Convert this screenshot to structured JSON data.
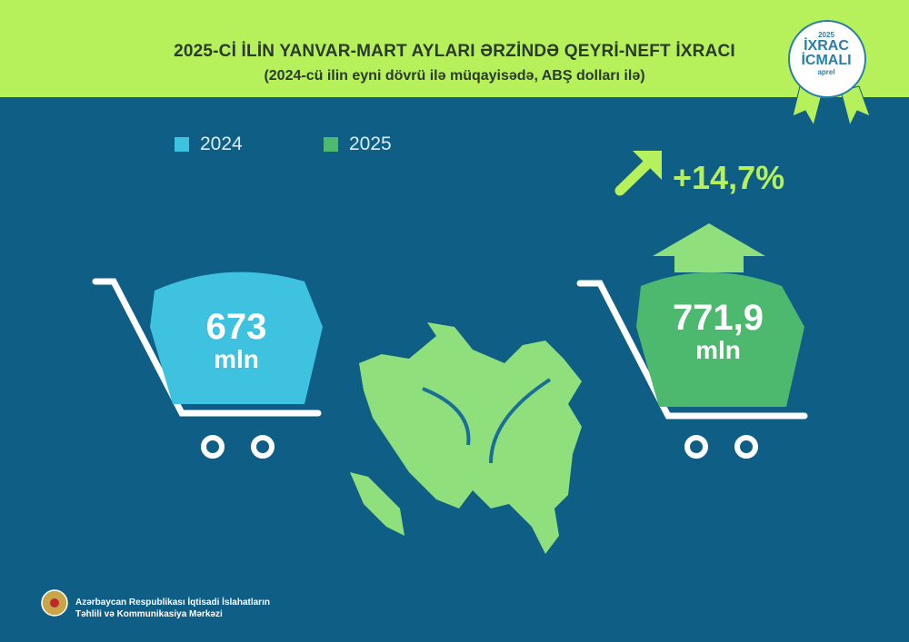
{
  "header": {
    "title": "2025-Cİ İLİN YANVAR-MART AYLARI ƏRZİNDƏ QEYRİ-NEFT İXRACI",
    "subtitle": "(2024-cü ilin eyni dövrü ilə müqayisədə, ABŞ dolları ilə)"
  },
  "badge": {
    "year": "2025",
    "line1": "İXRAC",
    "line2": "İCMALI",
    "month": "aprel"
  },
  "colors": {
    "background": "#0f5e86",
    "band": "#b6f15c",
    "c2024": "#3fc1e0",
    "c2025": "#4cb96f"
  },
  "chart_data": {
    "type": "bar",
    "title": "2025-Cİ İLİN YANVAR-MART AYLARI ƏRZİNDƏ QEYRİ-NEFT İXRACI",
    "subtitle": "(2024-cü ilin eyni dövrü ilə müqayisədə, ABŞ dolları ilə)",
    "categories": [
      "2024",
      "2025"
    ],
    "values": [
      673,
      771.9
    ],
    "labels": [
      "673",
      "771,9"
    ],
    "unit": "mln",
    "change": "+14,7%",
    "legend": [
      {
        "name": "2024",
        "color": "#3fc1e0"
      },
      {
        "name": "2025",
        "color": "#4cb96f"
      }
    ],
    "legend_position": "top-left"
  },
  "footer": {
    "line1": "Azərbaycan Respublikası İqtisadi İslahatların",
    "line2": "Təhlili və Kommunikasiya Mərkəzi"
  }
}
